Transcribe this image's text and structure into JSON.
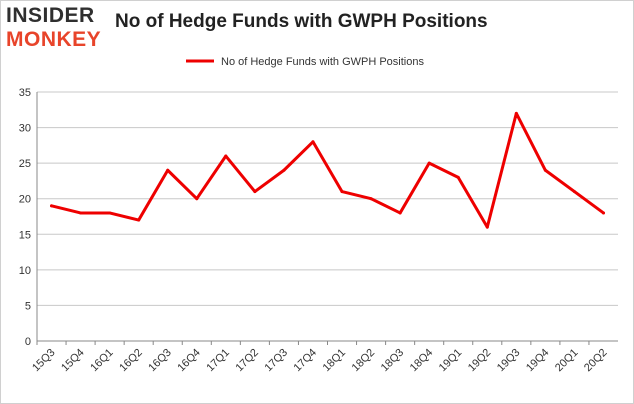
{
  "logo": {
    "line1": "INSIDER",
    "line2": "MONKEY"
  },
  "header": {
    "title": "No of Hedge Funds with GWPH Positions"
  },
  "colors": {
    "series": "#ee0000",
    "grid": "#c8c8c8",
    "axis": "#888888",
    "text": "#333333"
  },
  "chart_data": {
    "type": "line",
    "title": "No of Hedge Funds with GWPH Positions",
    "xlabel": "",
    "ylabel": "",
    "ylim": [
      0,
      35
    ],
    "yticks": [
      0,
      5,
      10,
      15,
      20,
      25,
      30,
      35
    ],
    "grid": "horizontal",
    "legend_position": "top-center",
    "categories": [
      "15Q3",
      "15Q4",
      "16Q1",
      "16Q2",
      "16Q3",
      "16Q4",
      "17Q1",
      "17Q2",
      "17Q3",
      "17Q4",
      "18Q1",
      "18Q2",
      "18Q3",
      "18Q4",
      "19Q1",
      "19Q2",
      "19Q3",
      "19Q4",
      "20Q1",
      "20Q2"
    ],
    "series": [
      {
        "name": "No of Hedge Funds with GWPH Positions",
        "values": [
          19,
          18,
          18,
          17,
          24,
          20,
          26,
          21,
          24,
          28,
          21,
          20,
          18,
          25,
          23,
          16,
          32,
          24,
          21,
          18
        ]
      }
    ]
  }
}
